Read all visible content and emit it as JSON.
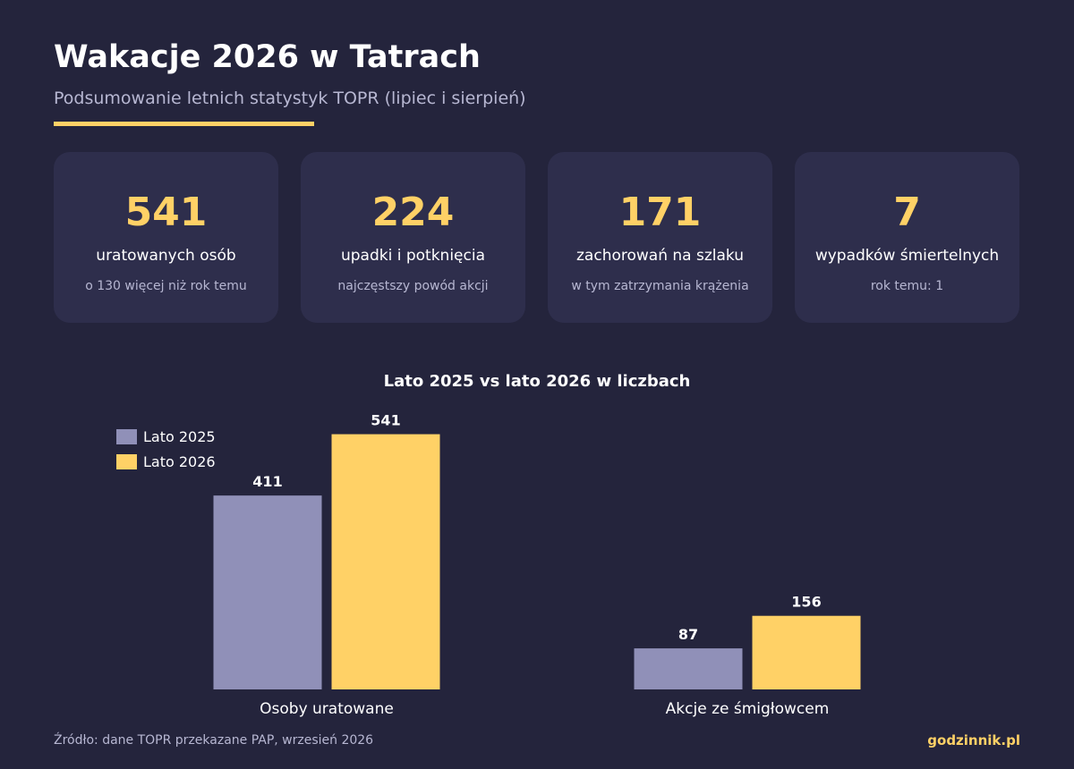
{
  "header": {
    "title": "Wakacje 2026 w Tatrach",
    "subtitle": "Podsumowanie letnich statystyk TOPR (lipiec i sierpień)"
  },
  "cards": [
    {
      "value": "541",
      "label": "uratowanych osób",
      "note": "o 130 więcej niż rok temu"
    },
    {
      "value": "224",
      "label": "upadki i potknięcia",
      "note": "najczęstszy powód akcji"
    },
    {
      "value": "171",
      "label": "zachorowań na szlaku",
      "note": "w tym zatrzymania krążenia"
    },
    {
      "value": "7",
      "label": "wypadków śmiertelnych",
      "note": "rok temu: 1"
    }
  ],
  "chart_data": {
    "type": "bar",
    "title": "Lato 2025 vs lato 2026 w liczbach",
    "categories": [
      "Osoby uratowane",
      "Akcje ze śmigłowcem"
    ],
    "series": [
      {
        "name": "Lato 2025",
        "values": [
          411,
          87
        ],
        "color": "#9090b8"
      },
      {
        "name": "Lato 2026",
        "values": [
          541,
          156
        ],
        "color": "#ffd166"
      }
    ],
    "ylim": [
      0,
      580
    ],
    "legend": "top-left",
    "grid": false
  },
  "footer": {
    "source": "Źródło: dane TOPR przekazane PAP, wrzesień 2026",
    "brand": "godzinnik.pl"
  },
  "colors": {
    "background": "#24243c",
    "card": "#2e2e4c",
    "accent": "#ffd166",
    "muted_text": "#b7b7d2"
  }
}
